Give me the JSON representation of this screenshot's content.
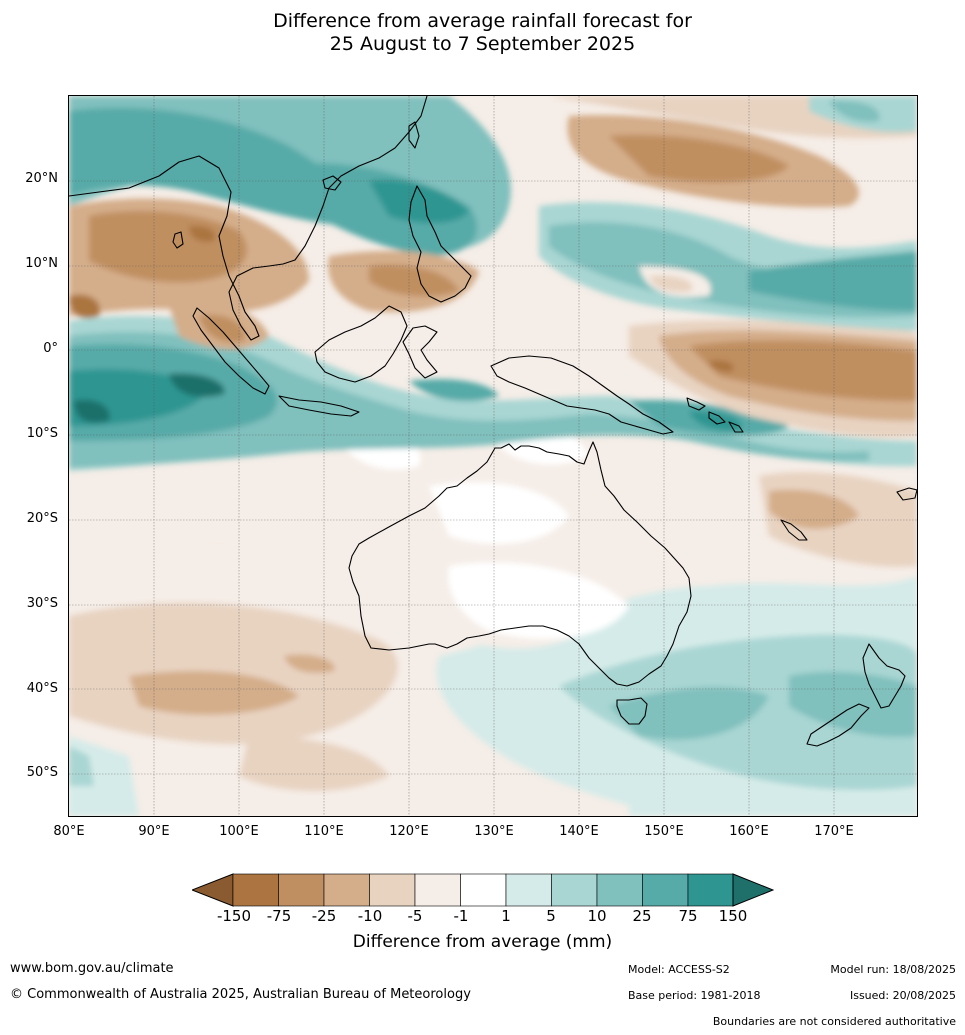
{
  "title": {
    "line1": "Difference from average rainfall forecast for",
    "line2": "25 August to 7 September 2025"
  },
  "map": {
    "lat_labels": [
      "20°N",
      "10°N",
      "0°",
      "10°S",
      "20°S",
      "30°S",
      "40°S",
      "50°S"
    ],
    "lon_labels": [
      "80°E",
      "90°E",
      "100°E",
      "110°E",
      "120°E",
      "130°E",
      "140°E",
      "150°E",
      "160°E",
      "170°E"
    ],
    "extent": {
      "lon": [
        80,
        180
      ],
      "lat": [
        -55,
        30
      ]
    }
  },
  "colorbar": {
    "ticks": [
      "-150",
      "-75",
      "-25",
      "-10",
      "-5",
      "-1",
      "1",
      "5",
      "10",
      "25",
      "75",
      "150"
    ],
    "colors": [
      "#8a5a30",
      "#ab7441",
      "#c08f61",
      "#d4ad8a",
      "#e8d3c1",
      "#f5ede7",
      "#ffffff",
      "#d5ebe9",
      "#a9d6d3",
      "#80c0bd",
      "#56aaa8",
      "#2e9591",
      "#1f6f6b"
    ],
    "label": "Difference from average (mm)"
  },
  "footer": {
    "url": "www.bom.gov.au/climate",
    "copyright": "© Commonwealth of Australia 2025, Australian Bureau of Meteorology",
    "model": "Model: ACCESS-S2",
    "base_period": "Base period: 1981-2018",
    "model_run": "Model run: 18/08/2025",
    "issued": "Issued: 20/08/2025",
    "disclaimer": "Boundaries are not considered authoritative"
  }
}
